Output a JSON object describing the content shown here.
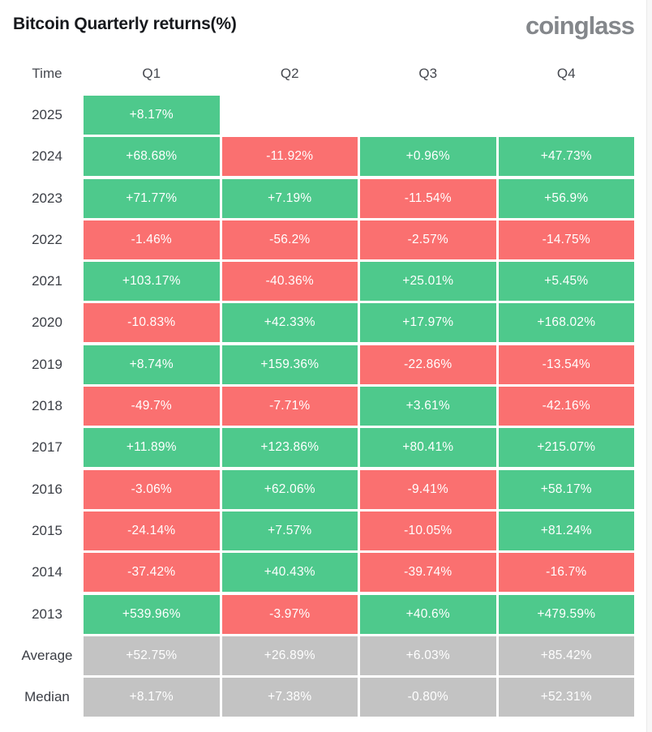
{
  "page": {
    "title": "Bitcoin Quarterly returns(%)",
    "brand": "coinglass"
  },
  "colors": {
    "positive_green": "#4ec98c",
    "negative_red": "#fa7070",
    "summary_gray": "#c3c3c3",
    "empty": "transparent"
  },
  "chart_data": {
    "type": "heatmap",
    "title": "Bitcoin Quarterly returns(%)",
    "columns": [
      "Time",
      "Q1",
      "Q2",
      "Q3",
      "Q4"
    ],
    "unit": "%",
    "legend_position": "none",
    "rows": [
      {
        "label": "2025",
        "cells": [
          {
            "text": "+8.17%",
            "tone": "green"
          },
          {
            "text": "",
            "tone": "empty"
          },
          {
            "text": "",
            "tone": "empty"
          },
          {
            "text": "",
            "tone": "empty"
          }
        ]
      },
      {
        "label": "2024",
        "cells": [
          {
            "text": "+68.68%",
            "tone": "green"
          },
          {
            "text": "-11.92%",
            "tone": "red"
          },
          {
            "text": "+0.96%",
            "tone": "green"
          },
          {
            "text": "+47.73%",
            "tone": "green"
          }
        ]
      },
      {
        "label": "2023",
        "cells": [
          {
            "text": "+71.77%",
            "tone": "green"
          },
          {
            "text": "+7.19%",
            "tone": "green"
          },
          {
            "text": "-11.54%",
            "tone": "red"
          },
          {
            "text": "+56.9%",
            "tone": "green"
          }
        ]
      },
      {
        "label": "2022",
        "cells": [
          {
            "text": "-1.46%",
            "tone": "red"
          },
          {
            "text": "-56.2%",
            "tone": "red"
          },
          {
            "text": "-2.57%",
            "tone": "red"
          },
          {
            "text": "-14.75%",
            "tone": "red"
          }
        ]
      },
      {
        "label": "2021",
        "cells": [
          {
            "text": "+103.17%",
            "tone": "green"
          },
          {
            "text": "-40.36%",
            "tone": "red"
          },
          {
            "text": "+25.01%",
            "tone": "green"
          },
          {
            "text": "+5.45%",
            "tone": "green"
          }
        ]
      },
      {
        "label": "2020",
        "cells": [
          {
            "text": "-10.83%",
            "tone": "red"
          },
          {
            "text": "+42.33%",
            "tone": "green"
          },
          {
            "text": "+17.97%",
            "tone": "green"
          },
          {
            "text": "+168.02%",
            "tone": "green"
          }
        ]
      },
      {
        "label": "2019",
        "cells": [
          {
            "text": "+8.74%",
            "tone": "green"
          },
          {
            "text": "+159.36%",
            "tone": "green"
          },
          {
            "text": "-22.86%",
            "tone": "red"
          },
          {
            "text": "-13.54%",
            "tone": "red"
          }
        ]
      },
      {
        "label": "2018",
        "cells": [
          {
            "text": "-49.7%",
            "tone": "red"
          },
          {
            "text": "-7.71%",
            "tone": "red"
          },
          {
            "text": "+3.61%",
            "tone": "green"
          },
          {
            "text": "-42.16%",
            "tone": "red"
          }
        ]
      },
      {
        "label": "2017",
        "cells": [
          {
            "text": "+11.89%",
            "tone": "green"
          },
          {
            "text": "+123.86%",
            "tone": "green"
          },
          {
            "text": "+80.41%",
            "tone": "green"
          },
          {
            "text": "+215.07%",
            "tone": "green"
          }
        ]
      },
      {
        "label": "2016",
        "cells": [
          {
            "text": "-3.06%",
            "tone": "red"
          },
          {
            "text": "+62.06%",
            "tone": "green"
          },
          {
            "text": "-9.41%",
            "tone": "red"
          },
          {
            "text": "+58.17%",
            "tone": "green"
          }
        ]
      },
      {
        "label": "2015",
        "cells": [
          {
            "text": "-24.14%",
            "tone": "red"
          },
          {
            "text": "+7.57%",
            "tone": "green"
          },
          {
            "text": "-10.05%",
            "tone": "red"
          },
          {
            "text": "+81.24%",
            "tone": "green"
          }
        ]
      },
      {
        "label": "2014",
        "cells": [
          {
            "text": "-37.42%",
            "tone": "red"
          },
          {
            "text": "+40.43%",
            "tone": "green"
          },
          {
            "text": "-39.74%",
            "tone": "red"
          },
          {
            "text": "-16.7%",
            "tone": "red"
          }
        ]
      },
      {
        "label": "2013",
        "cells": [
          {
            "text": "+539.96%",
            "tone": "green"
          },
          {
            "text": "-3.97%",
            "tone": "red"
          },
          {
            "text": "+40.6%",
            "tone": "green"
          },
          {
            "text": "+479.59%",
            "tone": "green"
          }
        ]
      },
      {
        "label": "Average",
        "cells": [
          {
            "text": "+52.75%",
            "tone": "gray"
          },
          {
            "text": "+26.89%",
            "tone": "gray"
          },
          {
            "text": "+6.03%",
            "tone": "gray"
          },
          {
            "text": "+85.42%",
            "tone": "gray"
          }
        ]
      },
      {
        "label": "Median",
        "cells": [
          {
            "text": "+8.17%",
            "tone": "gray"
          },
          {
            "text": "+7.38%",
            "tone": "gray"
          },
          {
            "text": "-0.80%",
            "tone": "gray"
          },
          {
            "text": "+52.31%",
            "tone": "gray"
          }
        ]
      }
    ]
  }
}
